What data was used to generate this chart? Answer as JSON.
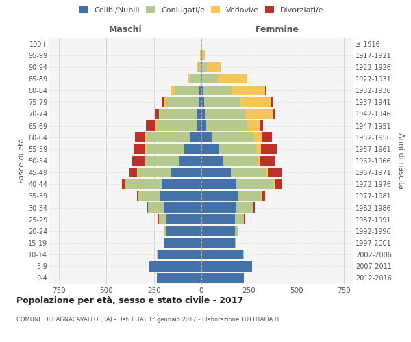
{
  "age_groups": [
    "0-4",
    "5-9",
    "10-14",
    "15-19",
    "20-24",
    "25-29",
    "30-34",
    "35-39",
    "40-44",
    "45-49",
    "50-54",
    "55-59",
    "60-64",
    "65-69",
    "70-74",
    "75-79",
    "80-84",
    "85-89",
    "90-94",
    "95-99",
    "100+"
  ],
  "birth_years": [
    "2012-2016",
    "2007-2011",
    "2002-2006",
    "1997-2001",
    "1992-1996",
    "1987-1991",
    "1982-1986",
    "1977-1981",
    "1972-1976",
    "1967-1971",
    "1962-1966",
    "1957-1961",
    "1952-1956",
    "1947-1951",
    "1942-1946",
    "1937-1941",
    "1932-1936",
    "1927-1931",
    "1922-1926",
    "1917-1921",
    "≤ 1916"
  ],
  "male": {
    "celibi": [
      235,
      275,
      230,
      195,
      185,
      185,
      200,
      220,
      210,
      160,
      120,
      90,
      60,
      25,
      20,
      15,
      10,
      5,
      3,
      2,
      0
    ],
    "coniugati": [
      0,
      0,
      5,
      5,
      10,
      40,
      80,
      110,
      190,
      175,
      175,
      200,
      230,
      210,
      195,
      170,
      130,
      55,
      15,
      3,
      0
    ],
    "vedovi": [
      0,
      0,
      0,
      0,
      0,
      0,
      0,
      0,
      2,
      5,
      5,
      5,
      5,
      8,
      10,
      15,
      20,
      10,
      5,
      2,
      0
    ],
    "divorziati": [
      0,
      0,
      0,
      0,
      0,
      5,
      5,
      10,
      15,
      40,
      65,
      60,
      55,
      50,
      15,
      10,
      0,
      0,
      0,
      0,
      0
    ]
  },
  "female": {
    "nubili": [
      225,
      265,
      220,
      175,
      175,
      175,
      185,
      195,
      185,
      155,
      115,
      90,
      55,
      25,
      20,
      15,
      10,
      5,
      5,
      3,
      0
    ],
    "coniugate": [
      0,
      0,
      5,
      5,
      15,
      50,
      90,
      120,
      195,
      185,
      180,
      200,
      220,
      215,
      210,
      190,
      150,
      80,
      25,
      5,
      0
    ],
    "vedove": [
      0,
      0,
      0,
      0,
      0,
      0,
      0,
      5,
      5,
      10,
      15,
      25,
      45,
      70,
      145,
      160,
      175,
      155,
      70,
      15,
      0
    ],
    "divorziate": [
      0,
      0,
      0,
      0,
      0,
      5,
      5,
      15,
      35,
      70,
      80,
      80,
      50,
      15,
      10,
      10,
      5,
      0,
      0,
      0,
      0
    ]
  },
  "colors": {
    "celibi": "#4472a8",
    "coniugati": "#b5c98e",
    "vedovi": "#f5c55a",
    "divorziati": "#c0302a"
  },
  "title": "Popolazione per età, sesso e stato civile - 2017",
  "subtitle": "COMUNE DI BAGNACAVALLO (RA) - Dati ISTAT 1° gennaio 2017 - Elaborazione TUTTITALIA.IT",
  "xlabel_left": "Maschi",
  "xlabel_right": "Femmine",
  "ylabel_left": "Fasce di età",
  "ylabel_right": "Anni di nascita",
  "xlim": 800,
  "bg_color": "#ffffff",
  "plot_bg_color": "#f5f5f5",
  "legend_labels": [
    "Celibi/Nubili",
    "Coniugati/e",
    "Vedovi/e",
    "Divorziati/e"
  ]
}
